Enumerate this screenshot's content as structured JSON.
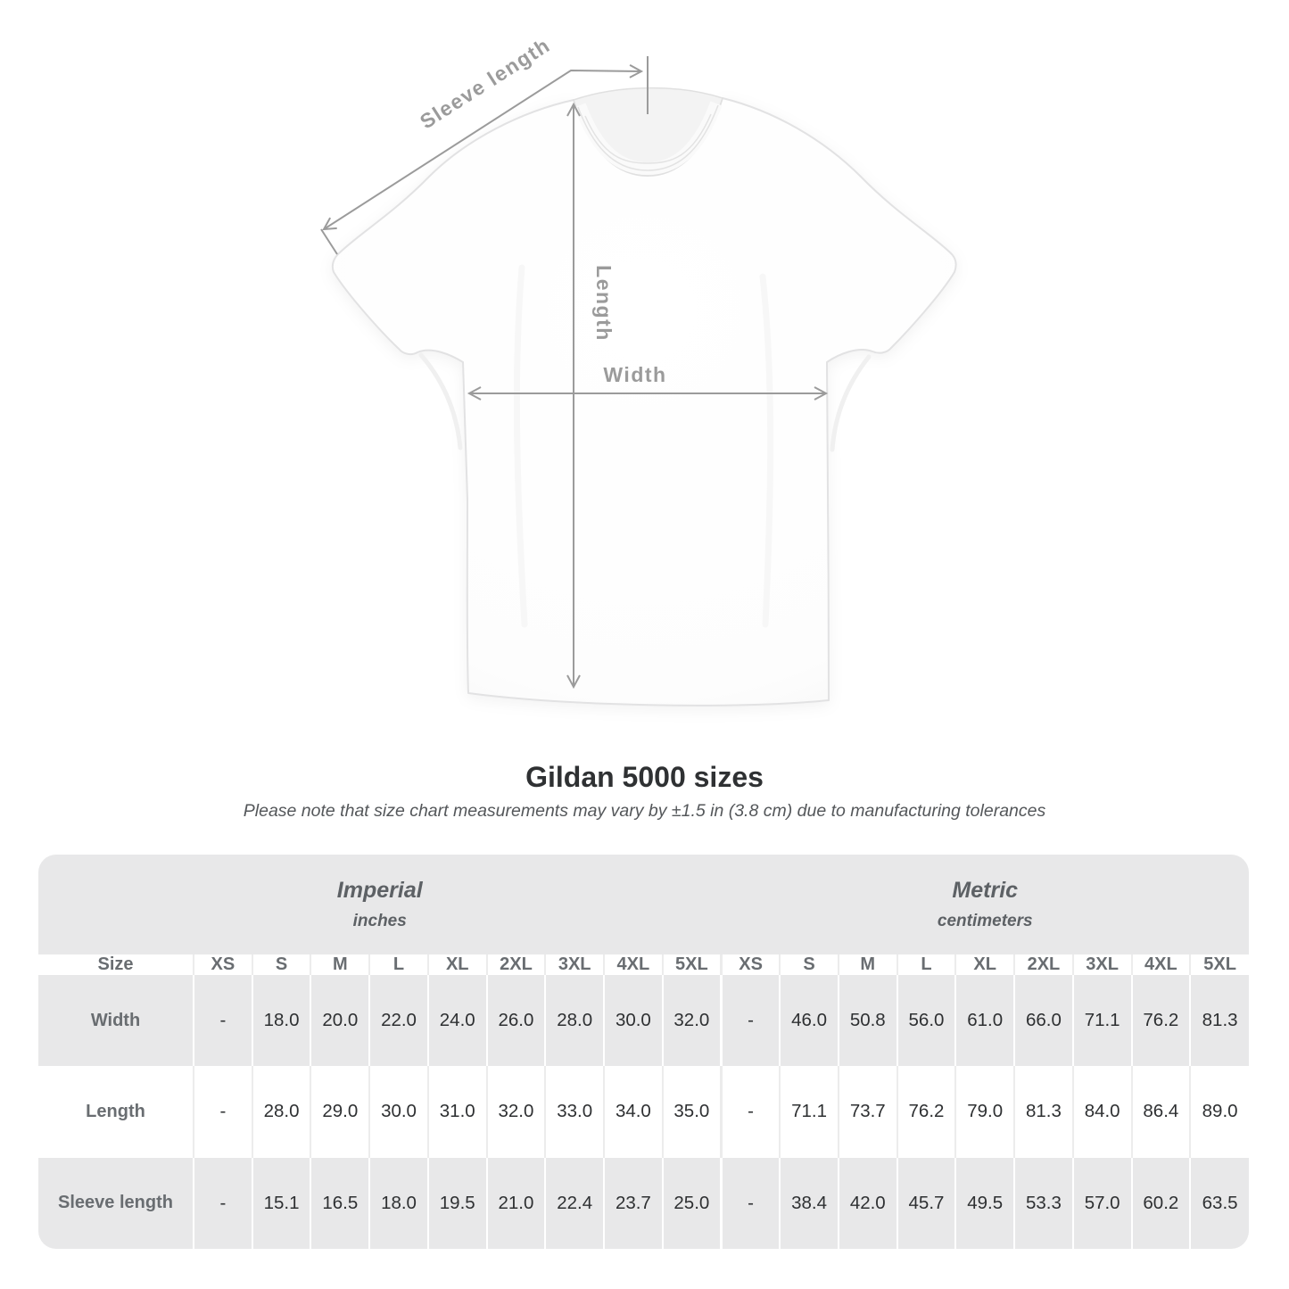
{
  "diagram": {
    "sleeve_length_label": "Sleeve length",
    "length_label": "Length",
    "width_label": "Width"
  },
  "title": "Gildan 5000 sizes",
  "subtitle": "Please note that size chart measurements may vary by ±1.5 in (3.8 cm) due to manufacturing tolerances",
  "table": {
    "groups": [
      {
        "label": "Imperial",
        "sublabel": "inches"
      },
      {
        "label": "Metric",
        "sublabel": "centimeters"
      }
    ],
    "size_header": "Size",
    "sizes": [
      "XS",
      "S",
      "M",
      "L",
      "XL",
      "2XL",
      "3XL",
      "4XL",
      "5XL"
    ],
    "rows": [
      {
        "label": "Width",
        "imperial": [
          "-",
          "18.0",
          "20.0",
          "22.0",
          "24.0",
          "26.0",
          "28.0",
          "30.0",
          "32.0"
        ],
        "metric": [
          "-",
          "46.0",
          "50.8",
          "56.0",
          "61.0",
          "66.0",
          "71.1",
          "76.2",
          "81.3"
        ]
      },
      {
        "label": "Length",
        "imperial": [
          "-",
          "28.0",
          "29.0",
          "30.0",
          "31.0",
          "32.0",
          "33.0",
          "34.0",
          "35.0"
        ],
        "metric": [
          "-",
          "71.1",
          "73.7",
          "76.2",
          "79.0",
          "81.3",
          "84.0",
          "86.4",
          "89.0"
        ]
      },
      {
        "label": "Sleeve length",
        "imperial": [
          "-",
          "15.1",
          "16.5",
          "18.0",
          "19.5",
          "21.0",
          "22.4",
          "23.7",
          "25.0"
        ],
        "metric": [
          "-",
          "38.4",
          "42.0",
          "45.7",
          "49.5",
          "53.3",
          "57.0",
          "60.2",
          "63.5"
        ]
      }
    ]
  },
  "colors": {
    "table_shade": "#e8e8e9",
    "header_text": "#696d71",
    "value_text": "#2e3032",
    "annotation": "#9b9b9b"
  }
}
